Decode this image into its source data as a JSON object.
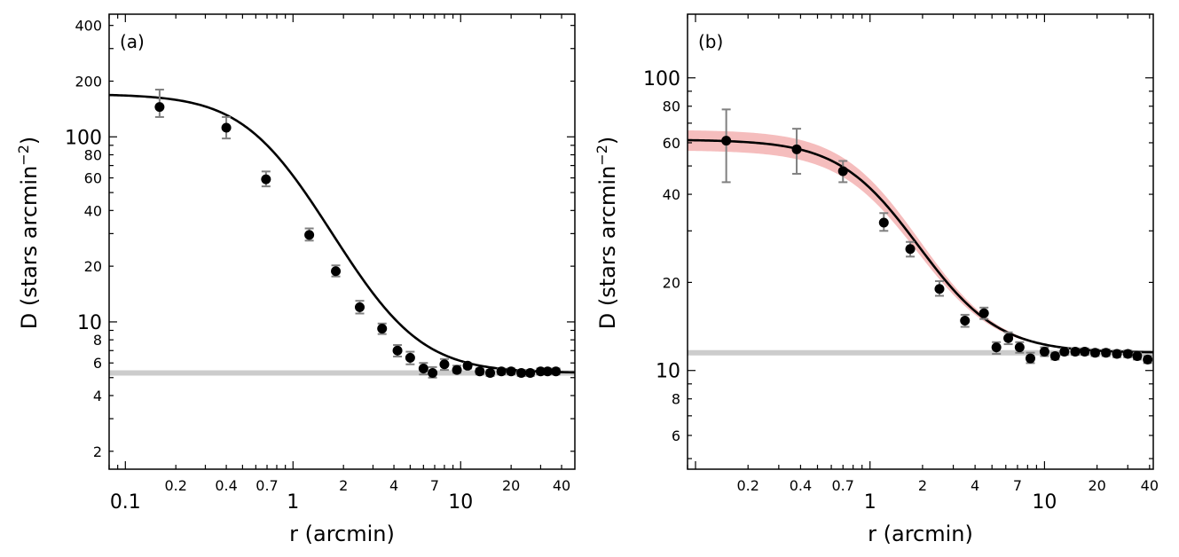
{
  "chart_data": [
    {
      "type": "scatter",
      "panel_label": "(a)",
      "xlabel": "r (arcmin)",
      "ylabel_main": "D (stars arcmin",
      "ylabel_exp": "−2",
      "ylabel_close": ")",
      "xscale": "log",
      "yscale": "log",
      "xlim": [
        0.08,
        48
      ],
      "ylim": [
        1.6,
        460
      ],
      "x_ticks_major": [
        {
          "value": 0.1,
          "label": "0.1"
        },
        {
          "value": 1,
          "label": "1"
        },
        {
          "value": 10,
          "label": "10"
        }
      ],
      "x_ticks_minor": [
        {
          "value": 0.2,
          "label": "0.2"
        },
        {
          "value": 0.4,
          "label": "0.4"
        },
        {
          "value": 0.7,
          "label": "0.7"
        },
        {
          "value": 2,
          "label": "2"
        },
        {
          "value": 4,
          "label": "4"
        },
        {
          "value": 7,
          "label": "7"
        },
        {
          "value": 20,
          "label": "20"
        },
        {
          "value": 40,
          "label": "40"
        }
      ],
      "y_ticks_major": [
        {
          "value": 10,
          "label": "10"
        },
        {
          "value": 100,
          "label": "100"
        }
      ],
      "y_ticks_minor": [
        {
          "value": 2,
          "label": "2"
        },
        {
          "value": 4,
          "label": "4"
        },
        {
          "value": 6,
          "label": "6"
        },
        {
          "value": 8,
          "label": "8"
        },
        {
          "value": 20,
          "label": "20"
        },
        {
          "value": 40,
          "label": "40"
        },
        {
          "value": 60,
          "label": "60"
        },
        {
          "value": 80,
          "label": "80"
        },
        {
          "value": 200,
          "label": "200"
        },
        {
          "value": 400,
          "label": "400"
        }
      ],
      "background_level": 5.3,
      "fit": {
        "model": "king",
        "f0": 165,
        "rc": 0.72,
        "bg": 5.3
      },
      "points": [
        {
          "x": 0.16,
          "y": 145,
          "lo": 128,
          "hi": 180
        },
        {
          "x": 0.4,
          "y": 112,
          "lo": 98,
          "hi": 128
        },
        {
          "x": 0.69,
          "y": 59,
          "lo": 54,
          "hi": 65
        },
        {
          "x": 1.25,
          "y": 29.5,
          "lo": 27.5,
          "hi": 32
        },
        {
          "x": 1.8,
          "y": 18.8,
          "lo": 17.6,
          "hi": 20.2
        },
        {
          "x": 2.5,
          "y": 12.0,
          "lo": 11.1,
          "hi": 13.0
        },
        {
          "x": 3.4,
          "y": 9.2,
          "lo": 8.6,
          "hi": 9.8
        },
        {
          "x": 4.2,
          "y": 7.0,
          "lo": 6.5,
          "hi": 7.5
        },
        {
          "x": 5.0,
          "y": 6.4,
          "lo": 5.9,
          "hi": 6.9
        },
        {
          "x": 6.0,
          "y": 5.6,
          "lo": 5.2,
          "hi": 6.0
        },
        {
          "x": 6.8,
          "y": 5.3,
          "lo": 5.0,
          "hi": 5.7
        },
        {
          "x": 8.0,
          "y": 5.9,
          "lo": 5.5,
          "hi": 6.3
        },
        {
          "x": 9.5,
          "y": 5.5,
          "lo": 5.3,
          "hi": 5.8
        },
        {
          "x": 11.0,
          "y": 5.8,
          "lo": 5.6,
          "hi": 6.0
        },
        {
          "x": 13.0,
          "y": 5.4,
          "lo": 5.2,
          "hi": 5.6
        },
        {
          "x": 15.0,
          "y": 5.3,
          "lo": 5.1,
          "hi": 5.5
        },
        {
          "x": 17.5,
          "y": 5.4,
          "lo": 5.2,
          "hi": 5.6
        },
        {
          "x": 20.0,
          "y": 5.4,
          "lo": 5.2,
          "hi": 5.6
        },
        {
          "x": 23.0,
          "y": 5.3,
          "lo": 5.1,
          "hi": 5.5
        },
        {
          "x": 26.0,
          "y": 5.3,
          "lo": 5.1,
          "hi": 5.5
        },
        {
          "x": 30.0,
          "y": 5.4,
          "lo": 5.2,
          "hi": 5.6
        },
        {
          "x": 33.0,
          "y": 5.4,
          "lo": 5.2,
          "hi": 5.6
        },
        {
          "x": 37.0,
          "y": 5.4,
          "lo": 5.2,
          "hi": 5.6
        }
      ]
    },
    {
      "type": "scatter",
      "panel_label": "(b)",
      "xlabel": "r (arcmin)",
      "ylabel_main": "D (stars arcmin",
      "ylabel_exp": "−2",
      "ylabel_close": ")",
      "xscale": "log",
      "yscale": "log",
      "xlim": [
        0.09,
        42
      ],
      "ylim": [
        4.6,
        165
      ],
      "x_ticks_major": [
        {
          "value": 1,
          "label": "1"
        },
        {
          "value": 10,
          "label": "10"
        }
      ],
      "x_ticks_minor": [
        {
          "value": 0.2,
          "label": "0.2"
        },
        {
          "value": 0.4,
          "label": "0.4"
        },
        {
          "value": 0.7,
          "label": "0.7"
        },
        {
          "value": 2,
          "label": "2"
        },
        {
          "value": 4,
          "label": "4"
        },
        {
          "value": 7,
          "label": "7"
        },
        {
          "value": 20,
          "label": "20"
        },
        {
          "value": 40,
          "label": "40"
        }
      ],
      "y_ticks_major": [
        {
          "value": 10,
          "label": "10"
        },
        {
          "value": 100,
          "label": "100"
        }
      ],
      "y_ticks_minor": [
        {
          "value": 6,
          "label": "6"
        },
        {
          "value": 8,
          "label": "8"
        },
        {
          "value": 20,
          "label": "20"
        },
        {
          "value": 40,
          "label": "40"
        },
        {
          "value": 60,
          "label": "60"
        },
        {
          "value": 80,
          "label": "80"
        }
      ],
      "background_level": 11.5,
      "fit": {
        "model": "king",
        "f0": 50,
        "rc": 1.25,
        "bg": 11.5,
        "band_fraction": 0.045
      },
      "points": [
        {
          "x": 0.15,
          "y": 61,
          "lo": 44,
          "hi": 78
        },
        {
          "x": 0.38,
          "y": 57,
          "lo": 47,
          "hi": 67
        },
        {
          "x": 0.7,
          "y": 48,
          "lo": 44,
          "hi": 52
        },
        {
          "x": 1.2,
          "y": 32,
          "lo": 30,
          "hi": 34.5
        },
        {
          "x": 1.7,
          "y": 26,
          "lo": 24.5,
          "hi": 27.5
        },
        {
          "x": 2.5,
          "y": 19,
          "lo": 18,
          "hi": 20.2
        },
        {
          "x": 3.5,
          "y": 14.8,
          "lo": 14.1,
          "hi": 15.5
        },
        {
          "x": 4.5,
          "y": 15.7,
          "lo": 15.0,
          "hi": 16.4
        },
        {
          "x": 5.3,
          "y": 12.0,
          "lo": 11.4,
          "hi": 12.5
        },
        {
          "x": 6.2,
          "y": 12.9,
          "lo": 12.3,
          "hi": 13.5
        },
        {
          "x": 7.2,
          "y": 12.0,
          "lo": 11.5,
          "hi": 12.5
        },
        {
          "x": 8.3,
          "y": 11.0,
          "lo": 10.6,
          "hi": 11.5
        },
        {
          "x": 10.0,
          "y": 11.6,
          "lo": 11.2,
          "hi": 12.0
        },
        {
          "x": 11.5,
          "y": 11.2,
          "lo": 10.9,
          "hi": 11.5
        },
        {
          "x": 13.0,
          "y": 11.6,
          "lo": 11.3,
          "hi": 11.9
        },
        {
          "x": 15.0,
          "y": 11.6,
          "lo": 11.3,
          "hi": 11.9
        },
        {
          "x": 17.0,
          "y": 11.6,
          "lo": 11.3,
          "hi": 11.9
        },
        {
          "x": 19.5,
          "y": 11.5,
          "lo": 11.2,
          "hi": 11.8
        },
        {
          "x": 22.5,
          "y": 11.5,
          "lo": 11.2,
          "hi": 11.8
        },
        {
          "x": 26.0,
          "y": 11.4,
          "lo": 11.1,
          "hi": 11.7
        },
        {
          "x": 30.0,
          "y": 11.4,
          "lo": 11.1,
          "hi": 11.7
        },
        {
          "x": 34.0,
          "y": 11.2,
          "lo": 10.9,
          "hi": 11.5
        },
        {
          "x": 39.0,
          "y": 10.9,
          "lo": 10.6,
          "hi": 11.2
        }
      ]
    }
  ],
  "colors": {
    "points": "#000000",
    "error_bars": "#808080",
    "fit_line": "#000000",
    "background_line": "#cccccc",
    "uncertainty_band": "#f4b6b6"
  }
}
